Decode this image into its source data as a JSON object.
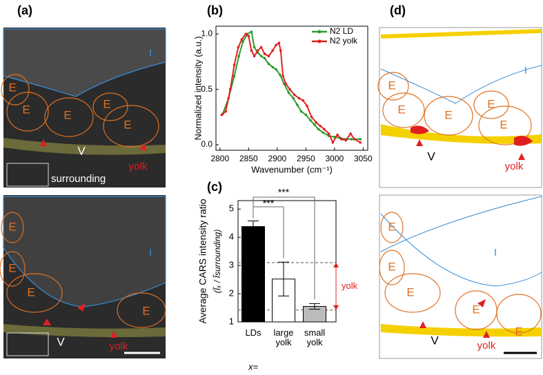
{
  "panel_labels": [
    "(a)",
    "(b)",
    "(c)",
    "(d)"
  ],
  "image_panels": [
    {
      "labels": [
        "I",
        "E",
        "E",
        "E",
        "E",
        "E",
        "V",
        "surrounding",
        "yolk"
      ]
    },
    {
      "labels": [
        "I",
        "E",
        "E",
        "E",
        "E",
        "V",
        "yolk"
      ]
    },
    {
      "labels": [
        "I",
        "E",
        "E",
        "E",
        "E",
        "E",
        "V",
        "yolk"
      ]
    },
    {
      "labels": [
        "I",
        "E",
        "E",
        "E",
        "E",
        "E",
        "V",
        "yolk"
      ]
    }
  ],
  "chart_data": [
    {
      "type": "line",
      "xlabel": "Wavenumber (cm⁻¹)",
      "ylabel": "Normalized intensity (a.u.)",
      "xlim": [
        2793,
        3058
      ],
      "ylim": [
        -0.05,
        1.07
      ],
      "xticks": [
        2800,
        2850,
        2900,
        2950,
        3000,
        3050
      ],
      "yticks": [
        {
          "value": 0,
          "label": "0.0"
        },
        0.5,
        {
          "value": 1,
          "label": "1.0"
        }
      ],
      "legend": "upper right",
      "series": [
        {
          "name": "N2 LD",
          "color": "#2a9a2a",
          "x": [
            2805,
            2815,
            2825,
            2833,
            2840,
            2848,
            2855,
            2860,
            2866,
            2872,
            2878,
            2885,
            2892,
            2898,
            2905,
            2912,
            2920,
            2928,
            2935,
            2942,
            2950,
            2958,
            2965,
            2972,
            2980,
            2990,
            3000,
            3010,
            3020,
            3030,
            3045
          ],
          "values": [
            0.28,
            0.42,
            0.62,
            0.8,
            0.93,
            1.0,
            1.02,
            0.88,
            0.83,
            0.8,
            0.78,
            0.73,
            0.7,
            0.68,
            0.63,
            0.55,
            0.47,
            0.42,
            0.36,
            0.3,
            0.27,
            0.22,
            0.18,
            0.14,
            0.11,
            0.08,
            0.07,
            0.06,
            0.05,
            0.05,
            0.05
          ]
        },
        {
          "name": "N2 yolk",
          "color": "#e02020",
          "x": [
            2803,
            2810,
            2818,
            2825,
            2832,
            2838,
            2845,
            2850,
            2855,
            2860,
            2866,
            2872,
            2878,
            2885,
            2892,
            2898,
            2903,
            2906,
            2910,
            2915,
            2922,
            2930,
            2938,
            2945,
            2952,
            2960,
            2968,
            2975,
            2982,
            2990,
            2997,
            3005,
            3012,
            3020,
            3028,
            3035,
            3045
          ],
          "values": [
            0.27,
            0.3,
            0.5,
            0.72,
            0.88,
            0.95,
            1.0,
            0.98,
            0.85,
            0.8,
            0.85,
            0.88,
            0.82,
            0.8,
            0.85,
            0.9,
            0.92,
            0.85,
            0.62,
            0.55,
            0.5,
            0.45,
            0.42,
            0.4,
            0.35,
            0.25,
            0.2,
            0.17,
            0.14,
            0.1,
            0.02,
            0.09,
            0.05,
            0.04,
            0.1,
            0.05,
            0.02
          ]
        }
      ]
    },
    {
      "type": "bar",
      "ylabel": "Average CARS intensity ratio",
      "ylabel2": "(Ĩₓ / Ĩsurrounding)",
      "xlabel": "x=",
      "categories": [
        "LDs",
        "large yolk",
        "small yolk"
      ],
      "values": [
        4.38,
        2.52,
        1.55
      ],
      "errors": [
        0.2,
        0.6,
        0.1
      ],
      "colors": [
        "#000000",
        "#ffffff",
        "#bbbbbb"
      ],
      "ylim": [
        1,
        5.3
      ],
      "yticks": [
        1,
        2,
        3,
        4,
        5
      ],
      "reference_lines": [
        3.1,
        1.42
      ],
      "range_label": "yolk",
      "significance": [
        "***",
        "***"
      ]
    }
  ]
}
